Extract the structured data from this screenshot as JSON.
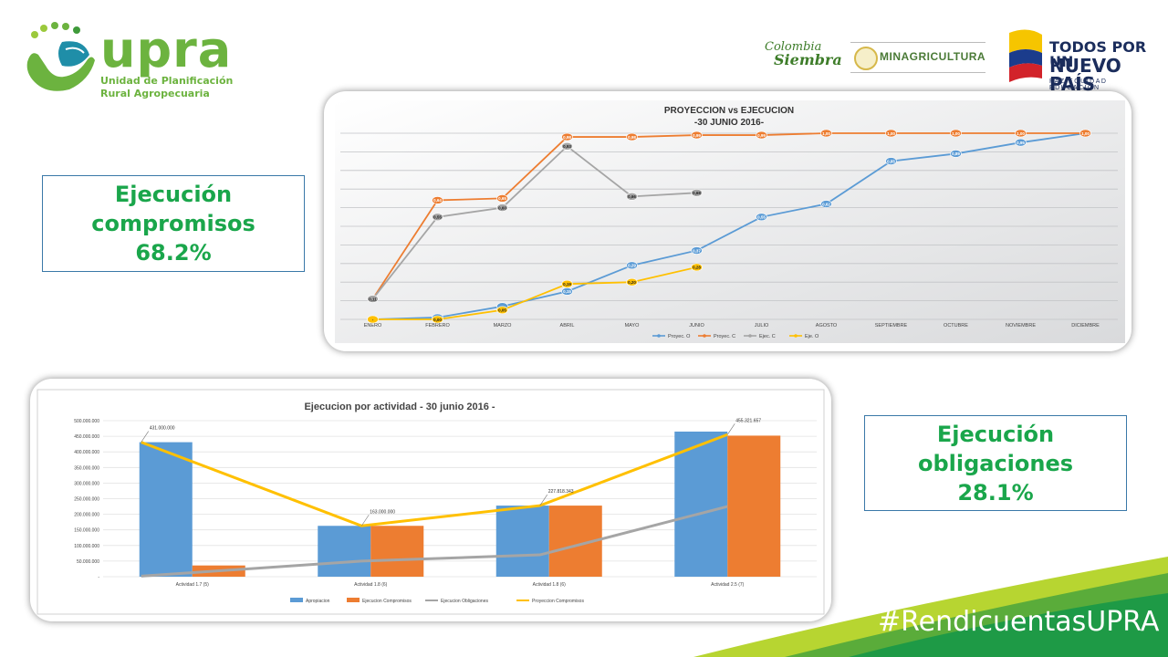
{
  "header": {
    "upra": {
      "name": "upra",
      "line1": "Unidad de Planificación",
      "line2": "Rural Agropecuaria"
    },
    "colombia_siembra": {
      "line1": "Colombia",
      "line2": "Siembra"
    },
    "minagri": "MINAGRICULTURA",
    "todos": {
      "line1": "TODOS POR UN",
      "line2": "NUEVO PAÍS",
      "line3": "PAZ  EQUIDAD  EDUCACIÓN"
    }
  },
  "kpi_compromisos": {
    "line1": "Ejecución",
    "line2": "compromisos",
    "line3": "68.2%"
  },
  "kpi_obligaciones": {
    "line1": "Ejecución",
    "line2": "obligaciones",
    "line3": "28.1%"
  },
  "footer": {
    "hashtag": "#RendicuentasUPRA"
  },
  "colors": {
    "green": "#1aa64b",
    "proyec_o": "#5b9bd5",
    "proyec_c": "#ed7d31",
    "ejec_c": "#a5a5a5",
    "eje_o": "#ffc000"
  },
  "chart_data": [
    {
      "type": "line",
      "title": "PROYECCION vs EJECUCION",
      "subtitle": "-30 JUNIO 2016-",
      "categories": [
        "ENERO",
        "FEBRERO",
        "MARZO",
        "ABRIL",
        "MAYO",
        "JUNIO",
        "JULIO",
        "AGOSTO",
        "SEPTIEMBRE",
        "OCTUBRE",
        "NOVIEMBRE",
        "DICIEMBRE"
      ],
      "ylim": [
        0,
        1
      ],
      "grid": true,
      "legend": "bottom",
      "series": [
        {
          "name": "Proyec. O",
          "values": [
            0,
            0.01,
            0.07,
            0.15,
            0.29,
            0.37,
            0.55,
            0.62,
            0.85,
            0.89,
            0.95,
            1.0
          ],
          "labels": [
            "",
            "",
            "",
            "0,15",
            "0,29",
            "0,37",
            "0,55",
            "0,62",
            "0,85",
            "0,89",
            "0,95",
            "1,00"
          ]
        },
        {
          "name": "Proyec. C",
          "values": [
            0.11,
            0.64,
            0.65,
            0.98,
            0.98,
            0.99,
            0.99,
            1.0,
            1.0,
            1.0,
            1.0,
            1.0
          ],
          "labels": [
            "",
            "0,64",
            "0,65",
            "0,98",
            "0,98",
            "0,99",
            "0,99",
            "1,00",
            "1,00",
            "1,00",
            "1,00",
            "1,00"
          ]
        },
        {
          "name": "Ejec. C",
          "values": [
            0.11,
            0.55,
            0.6,
            0.93,
            0.66,
            0.68,
            null,
            null,
            null,
            null,
            null,
            null
          ],
          "labels": [
            "0,11",
            "0,55",
            "0,60",
            "0,93",
            "0,66",
            "0,68",
            "",
            "",
            "",
            "",
            "",
            ""
          ]
        },
        {
          "name": "Eje. O",
          "values": [
            0,
            0,
            0.05,
            0.19,
            0.2,
            0.28,
            null,
            null,
            null,
            null,
            null,
            null
          ],
          "labels": [
            "-",
            "0,00",
            "0,05",
            "0,19",
            "0,20",
            "0,28",
            "",
            "",
            "",
            "",
            "",
            ""
          ]
        }
      ]
    },
    {
      "type": "bar",
      "title": "Ejecucion por actividad - 30 junio 2016 -",
      "categories": [
        "Actividad 1.7 (5)",
        "Actividad 1.8 (6)",
        "Actividad 1.8 (6)",
        "Actividad 2.5 (7)"
      ],
      "ylim": [
        0,
        500000000
      ],
      "yticks": [
        0,
        50000000,
        100000000,
        150000000,
        200000000,
        250000000,
        300000000,
        350000000,
        400000000,
        450000000,
        500000000
      ],
      "ytick_labels": [
        "-",
        "50.000.000",
        "100.000.000",
        "150.000.000",
        "200.000.000",
        "250.000.000",
        "300.000.000",
        "350.000.000",
        "400.000.000",
        "450.000.000",
        "500.000.000"
      ],
      "grid": true,
      "legend": "bottom",
      "bar_series": [
        {
          "name": "Apropiacion",
          "values": [
            431000000,
            163000000,
            227818343,
            465000000
          ]
        },
        {
          "name": "Ejecucion Compromisos",
          "values": [
            36000000,
            163000000,
            227818343,
            452000000
          ]
        }
      ],
      "line_series": [
        {
          "name": "Ejecucion Obligaciones",
          "values": [
            2000000,
            50000000,
            70000000,
            225000000
          ]
        },
        {
          "name": "Proyeccion Compromisos",
          "values": [
            431000000,
            163000000,
            227818343,
            455321657
          ]
        }
      ],
      "annotations": [
        "431.000.000",
        "163.000.000",
        "227.818.343",
        "455.321.657"
      ]
    }
  ]
}
